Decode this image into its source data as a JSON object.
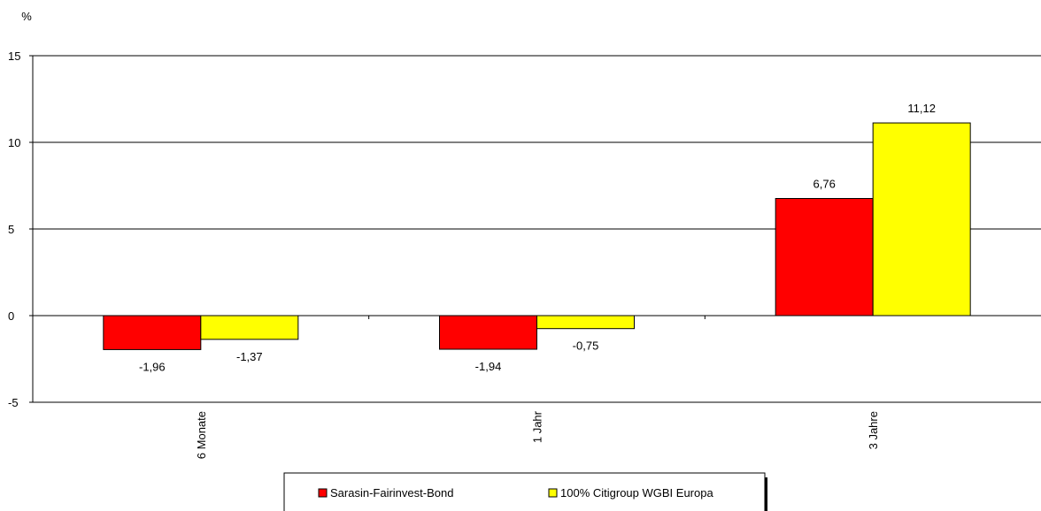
{
  "chart_data": {
    "type": "bar",
    "y_unit": "%",
    "categories": [
      "6 Monate",
      "1 Jahr",
      "3 Jahre"
    ],
    "series": [
      {
        "name": "Sarasin-Fairinvest-Bond",
        "color": "#ff0000",
        "values": [
          -1.96,
          -1.94,
          6.76
        ],
        "labels": [
          "-1,96",
          "-1,94",
          "6,76"
        ]
      },
      {
        "name": "100% Citigroup WGBI Europa",
        "color": "#ffff00",
        "values": [
          -1.37,
          -0.75,
          11.12
        ],
        "labels": [
          "-1,37",
          "-0,75",
          "11,12"
        ]
      }
    ],
    "ylim": [
      -5,
      15
    ],
    "yticks": [
      15,
      10,
      5,
      0,
      -5
    ],
    "ytick_labels": [
      "15",
      "10",
      "5",
      "0",
      "-5"
    ],
    "grid": true,
    "legend_position": "bottom"
  }
}
